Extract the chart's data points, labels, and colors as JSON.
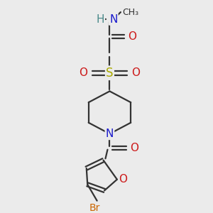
{
  "bg_color": "#ebebeb",
  "fig_size": [
    3.0,
    3.0
  ],
  "dpi": 100,
  "colors": {
    "H": "#4a8a8a",
    "N": "#1a1acc",
    "O": "#cc1a1a",
    "S": "#aaaa00",
    "Br": "#cc6600",
    "bond": "#333333",
    "bg": "#ebebeb"
  },
  "bond_lw": 1.6
}
